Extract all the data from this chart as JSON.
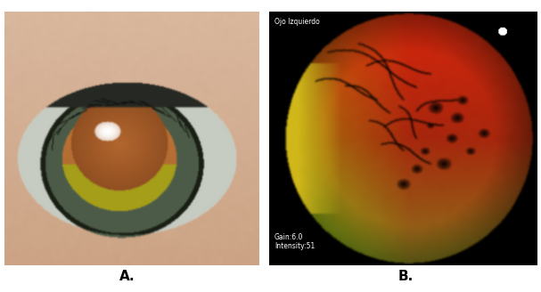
{
  "fig_width": 6.07,
  "fig_height": 3.28,
  "dpi": 100,
  "background_color": "#ffffff",
  "panel_a": {
    "label": "A.",
    "label_fontsize": 11,
    "label_fontweight": "bold"
  },
  "panel_b": {
    "label": "B.",
    "label_fontsize": 11,
    "label_fontweight": "bold",
    "text_color": "#ffffff",
    "overlay_text_top": "Ojo Izquierdo",
    "overlay_text_gain": "Gain:6.0",
    "overlay_text_intensity": "Intensity:51",
    "text_fontsize": 5.5
  }
}
